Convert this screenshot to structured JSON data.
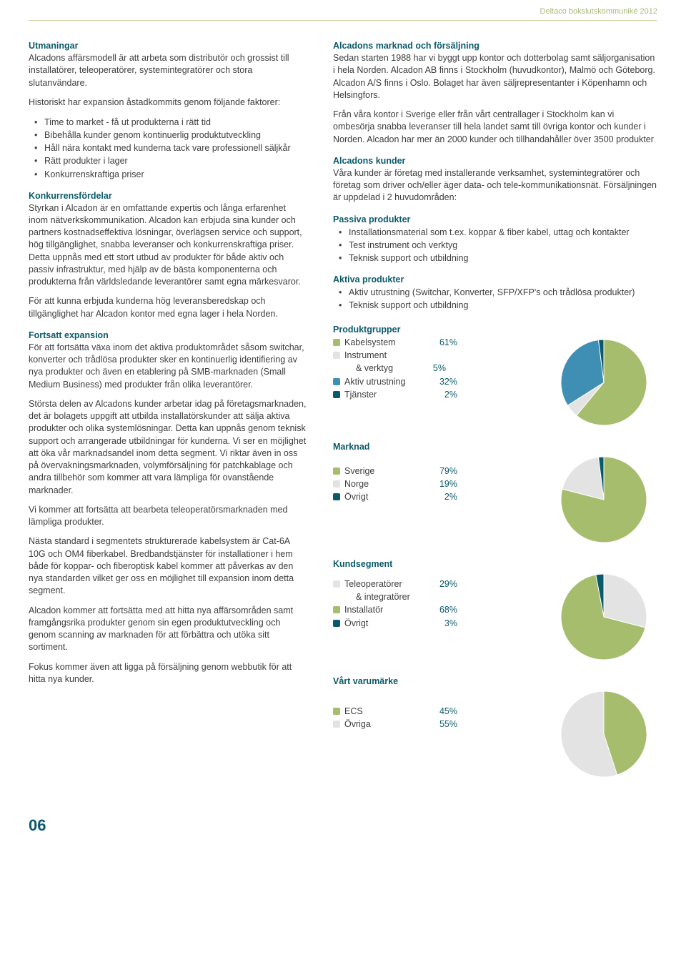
{
  "header": "Deltaco bokslutskommuniké 2012",
  "page_number": "06",
  "colors": {
    "blue_heading": "#0b5a6b",
    "body_text": "#3e3e3e",
    "header_olive": "#aab978"
  },
  "left": {
    "sec1_title": "Utmaningar",
    "sec1_p1": "Alcadons affärsmodell är att arbeta som distributör och grossist till installatörer, teleoperatörer, systemintegratörer och stora slutanvändare.",
    "sec1_p2": "Historiskt har expansion åstadkommits genom följande faktorer:",
    "sec1_list": [
      "Time to market - få ut produkterna i rätt tid",
      "Bibehålla kunder genom kontinuerlig produktutveckling",
      "Håll nära kontakt med kunderna tack vare professionell säljkår",
      "Rätt produkter i lager",
      "Konkurrenskraftiga priser"
    ],
    "sec2_title": "Konkurrensfördelar",
    "sec2_p1": "Styrkan i Alcadon är en omfattande expertis och långa erfarenhet inom nätverkskommunikation.\nAlcadon kan erbjuda sina kunder och partners kostnadseffektiva lösningar, överlägsen service och support, hög tillgänglighet, snabba leveranser och konkurrenskraftiga priser. Detta uppnås med ett stort utbud av produkter för både aktiv och passiv infrastruktur, med hjälp av de bästa komponenterna och produkterna från världsledande leverantörer samt egna märkesvaror.",
    "sec2_p2": "För att kunna erbjuda kunderna hög leveransberedskap och tillgänglighet har Alcadon kontor med egna lager i hela Norden.",
    "sec3_title": "Fortsatt expansion",
    "sec3_p1": "För att fortsätta växa inom det aktiva produktområdet såsom switchar, konverter och trådlösa produkter sker en kontinuerlig identifiering av nya produkter och även en etablering på SMB-marknaden (Small Medium Business) med produkter från olika leverantörer.",
    "sec3_p2": "Största delen av Alcadons kunder arbetar idag på företagsmarknaden, det är bolagets uppgift att utbilda installatörskunder att sälja aktiva produkter och olika systemlösningar. Detta kan uppnås genom teknisk support och arrangerade utbildningar för kunderna. Vi ser en möjlighet att öka vår marknadsandel inom detta segment. Vi riktar även in oss på övervakningsmarknaden, volymförsäljning för patchkablage och andra tillbehör som kommer att vara lämpliga för ovanstående marknader.",
    "sec3_p3": "Vi kommer att fortsätta att bearbeta teleoperatörsmarknaden med lämpliga produkter.",
    "sec3_p4": "Nästa standard i segmentets strukturerade kabelsystem är Cat-6A 10G och OM4 fiberkabel. Bredbandstjänster för installationer i hem både för koppar- och fiberoptisk kabel kommer att påverkas av den nya standarden vilket ger oss en möjlighet till expansion inom detta segment.",
    "sec3_p5": "Alcadon kommer att fortsätta med att hitta nya affärsområden samt framgångsrika produkter genom sin egen produktutveckling och genom scanning av marknaden för att förbättra och utöka sitt sortiment.",
    "sec3_p6": "Fokus kommer även att ligga på försäljning genom webbutik för att hitta nya kunder."
  },
  "right": {
    "sec1_title": "Alcadons marknad och försäljning",
    "sec1_p1": "Sedan starten 1988 har vi byggt upp kontor och dotterbolag samt säljorganisation i hela Norden. Alcadon AB finns i Stockholm (huvudkontor), Malmö och Göteborg. Alcadon A/S finns i Oslo. Bolaget har även säljrepresentanter i Köpenhamn och Helsingfors.",
    "sec1_p2": "Från våra kontor i Sverige eller från vårt centrallager i Stockholm kan vi ombesörja snabba leveranser till hela landet samt till övriga kontor och kunder i Norden. Alcadon har mer än 2000 kunder och tillhandahåller över 3500 produkter",
    "sec2_title": "Alcadons kunder",
    "sec2_p1": "Våra kunder är företag med installerande verksamhet, systemintegratörer och företag som driver och/eller äger data- och tele-kommunikationsnät.\nFörsäljningen är uppdelad i 2 huvudområden:",
    "passiva_title": "Passiva produkter",
    "passiva_list": [
      "Installationsmaterial som t.ex. koppar & fiber kabel, uttag och kontakter",
      "Test instrument och verktyg",
      "Teknisk support och utbildning"
    ],
    "aktiva_title": "Aktiva produkter",
    "aktiva_list": [
      "Aktiv utrustning (Switchar, Konverter, SFP/XFP's och trådlösa produkter)",
      "Teknisk support och utbildning"
    ]
  },
  "charts": {
    "pie_radius": 60,
    "bg": "#ffffff",
    "produktgrupper": {
      "title": "Produktgrupper",
      "items": [
        {
          "label": "Kabelsystem",
          "value": 61,
          "color": "#a6bd6d"
        },
        {
          "label": "Instrument & verktyg",
          "label1": "Instrument",
          "label2": "& verktyg",
          "value": 5,
          "color": "#e3e3e3"
        },
        {
          "label": "Aktiv utrustning",
          "value": 32,
          "color": "#3f8fb5"
        },
        {
          "label": "Tjänster",
          "value": 2,
          "color": "#0b5a6b"
        }
      ]
    },
    "marknad": {
      "title": "Marknad",
      "items": [
        {
          "label": "Sverige",
          "value": 79,
          "color": "#a6bd6d"
        },
        {
          "label": "Norge",
          "value": 19,
          "color": "#e3e3e3"
        },
        {
          "label": "Övrigt",
          "value": 2,
          "color": "#0b5a6b"
        }
      ]
    },
    "kundsegment": {
      "title": "Kundsegment",
      "items": [
        {
          "label": "Teleoperatörer & integratörer",
          "label1": "Teleoperatörer",
          "label2": "& integratörer",
          "value": 29,
          "color": "#e3e3e3"
        },
        {
          "label": "Installatör",
          "value": 68,
          "color": "#a6bd6d"
        },
        {
          "label": "Övrigt",
          "value": 3,
          "color": "#0b5a6b"
        }
      ]
    },
    "varumarke": {
      "title": "Vårt varumärke",
      "items": [
        {
          "label": "ECS",
          "value": 45,
          "color": "#a6bd6d"
        },
        {
          "label": "Övriga",
          "value": 55,
          "color": "#e3e3e3"
        }
      ]
    }
  }
}
